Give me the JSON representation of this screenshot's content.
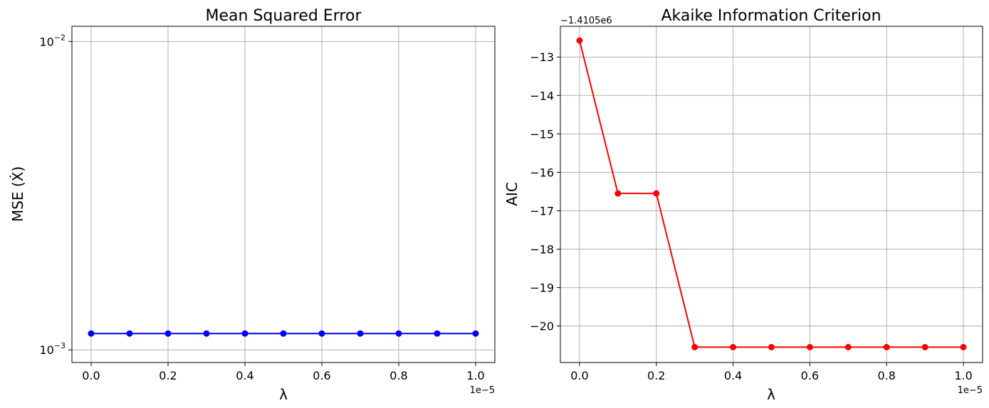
{
  "chart_data": [
    {
      "type": "line",
      "title": "Mean Squared Error",
      "xlabel": "λ",
      "ylabel": "MSE (Ẋ)",
      "x_multiplier_label": "1e−5",
      "yscale": "log",
      "ylim": [
        0.00091,
        0.0112
      ],
      "xlim": [
        -0.05,
        1.05
      ],
      "x_ticks": [
        0.0,
        0.2,
        0.4,
        0.6,
        0.8,
        1.0
      ],
      "x_tick_labels": [
        "0.0",
        "0.2",
        "0.4",
        "0.6",
        "0.8",
        "1.0"
      ],
      "y_ticks": [
        {
          "value": 0.01,
          "base": "10",
          "exp": "−2"
        },
        {
          "value": 0.001,
          "base": "10",
          "exp": "−3"
        }
      ],
      "grid": true,
      "color": "#0000ff",
      "series": [
        {
          "x": [
            0.0,
            0.1,
            0.2,
            0.3,
            0.4,
            0.5,
            0.6,
            0.7,
            0.8,
            0.9,
            1.0
          ],
          "values": [
            0.00113,
            0.00113,
            0.00113,
            0.00113,
            0.00113,
            0.00113,
            0.00113,
            0.00113,
            0.00113,
            0.00113,
            0.00113
          ]
        }
      ]
    },
    {
      "type": "line",
      "title": "Akaike Information Criterion",
      "xlabel": "λ",
      "ylabel": "AIC",
      "x_multiplier_label": "1e−5",
      "y_offset_label": "−1.4105e6",
      "yscale": "linear",
      "ylim": [
        -20.95,
        -12.2
      ],
      "xlim": [
        -0.05,
        1.05
      ],
      "x_ticks": [
        0.0,
        0.2,
        0.4,
        0.6,
        0.8,
        1.0
      ],
      "x_tick_labels": [
        "0.0",
        "0.2",
        "0.4",
        "0.6",
        "0.8",
        "1.0"
      ],
      "y_ticks": [
        -13,
        -14,
        -15,
        -16,
        -17,
        -18,
        -19,
        -20
      ],
      "y_tick_labels": [
        "−13",
        "−14",
        "−15",
        "−16",
        "−17",
        "−18",
        "−19",
        "−20"
      ],
      "grid": true,
      "color": "#ff0000",
      "series": [
        {
          "x": [
            0.0,
            0.1,
            0.2,
            0.3,
            0.4,
            0.5,
            0.6,
            0.7,
            0.8,
            0.9,
            1.0
          ],
          "values": [
            -12.57,
            -16.55,
            -16.55,
            -20.55,
            -20.55,
            -20.55,
            -20.55,
            -20.55,
            -20.55,
            -20.55,
            -20.55
          ]
        }
      ]
    }
  ]
}
